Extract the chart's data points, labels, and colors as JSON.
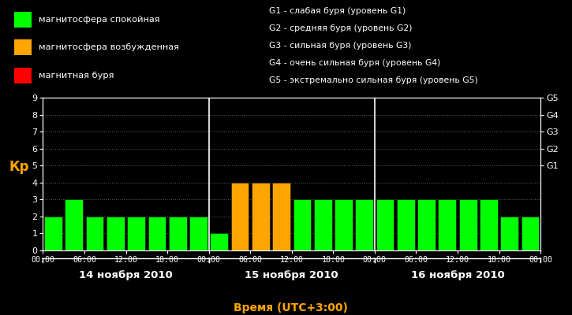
{
  "background_color": "#000000",
  "bar_data": [
    {
      "hour": 0,
      "day": 14,
      "value": 2,
      "color": "#00ff00"
    },
    {
      "hour": 3,
      "day": 14,
      "value": 3,
      "color": "#00ff00"
    },
    {
      "hour": 6,
      "day": 14,
      "value": 2,
      "color": "#00ff00"
    },
    {
      "hour": 9,
      "day": 14,
      "value": 2,
      "color": "#00ff00"
    },
    {
      "hour": 12,
      "day": 14,
      "value": 2,
      "color": "#00ff00"
    },
    {
      "hour": 15,
      "day": 14,
      "value": 2,
      "color": "#00ff00"
    },
    {
      "hour": 18,
      "day": 14,
      "value": 2,
      "color": "#00ff00"
    },
    {
      "hour": 21,
      "day": 14,
      "value": 2,
      "color": "#00ff00"
    },
    {
      "hour": 0,
      "day": 15,
      "value": 1,
      "color": "#00ff00"
    },
    {
      "hour": 3,
      "day": 15,
      "value": 4,
      "color": "#ffa500"
    },
    {
      "hour": 6,
      "day": 15,
      "value": 4,
      "color": "#ffa500"
    },
    {
      "hour": 9,
      "day": 15,
      "value": 4,
      "color": "#ffa500"
    },
    {
      "hour": 12,
      "day": 15,
      "value": 3,
      "color": "#00ff00"
    },
    {
      "hour": 15,
      "day": 15,
      "value": 3,
      "color": "#00ff00"
    },
    {
      "hour": 18,
      "day": 15,
      "value": 3,
      "color": "#00ff00"
    },
    {
      "hour": 21,
      "day": 15,
      "value": 3,
      "color": "#00ff00"
    },
    {
      "hour": 0,
      "day": 16,
      "value": 3,
      "color": "#00ff00"
    },
    {
      "hour": 3,
      "day": 16,
      "value": 3,
      "color": "#00ff00"
    },
    {
      "hour": 6,
      "day": 16,
      "value": 3,
      "color": "#00ff00"
    },
    {
      "hour": 9,
      "day": 16,
      "value": 3,
      "color": "#00ff00"
    },
    {
      "hour": 12,
      "day": 16,
      "value": 3,
      "color": "#00ff00"
    },
    {
      "hour": 15,
      "day": 16,
      "value": 3,
      "color": "#00ff00"
    },
    {
      "hour": 18,
      "day": 16,
      "value": 2,
      "color": "#00ff00"
    },
    {
      "hour": 21,
      "day": 16,
      "value": 2,
      "color": "#00ff00"
    }
  ],
  "ylim": [
    0,
    9
  ],
  "yticks": [
    0,
    1,
    2,
    3,
    4,
    5,
    6,
    7,
    8,
    9
  ],
  "ylabel": "Кр",
  "ylabel_color": "#ffa500",
  "xlabel": "Время (UTC+3:00)",
  "xlabel_color": "#ffa500",
  "tick_color": "#ffffff",
  "text_color": "#ffffff",
  "day_labels": [
    "14 ноября 2010",
    "15 ноября 2010",
    "16 ноября 2010"
  ],
  "vline_positions": [
    24,
    48
  ],
  "xtick_labels": [
    "00:00",
    "06:00",
    "12:00",
    "18:00",
    "00:00",
    "06:00",
    "12:00",
    "18:00",
    "00:00",
    "06:00",
    "12:00",
    "18:00",
    "00:00"
  ],
  "right_axis_labels": [
    "G5",
    "G4",
    "G3",
    "G2",
    "G1"
  ],
  "right_axis_positions": [
    9,
    8,
    7,
    6,
    5
  ],
  "legend_items": [
    {
      "label": "магнитосфера спокойная",
      "color": "#00ff00"
    },
    {
      "label": "магнитосфера возбужденная",
      "color": "#ffa500"
    },
    {
      "label": "магнитная буря",
      "color": "#ff0000"
    }
  ],
  "right_legend_lines": [
    "G1 - слабая буря (уровень G1)",
    "G2 - средняя буря (уровень G2)",
    "G3 - сильная буря (уровень G3)",
    "G4 - очень сильная буря (уровень G4)",
    "G5 - экстремально сильная буря (уровень G5)"
  ]
}
